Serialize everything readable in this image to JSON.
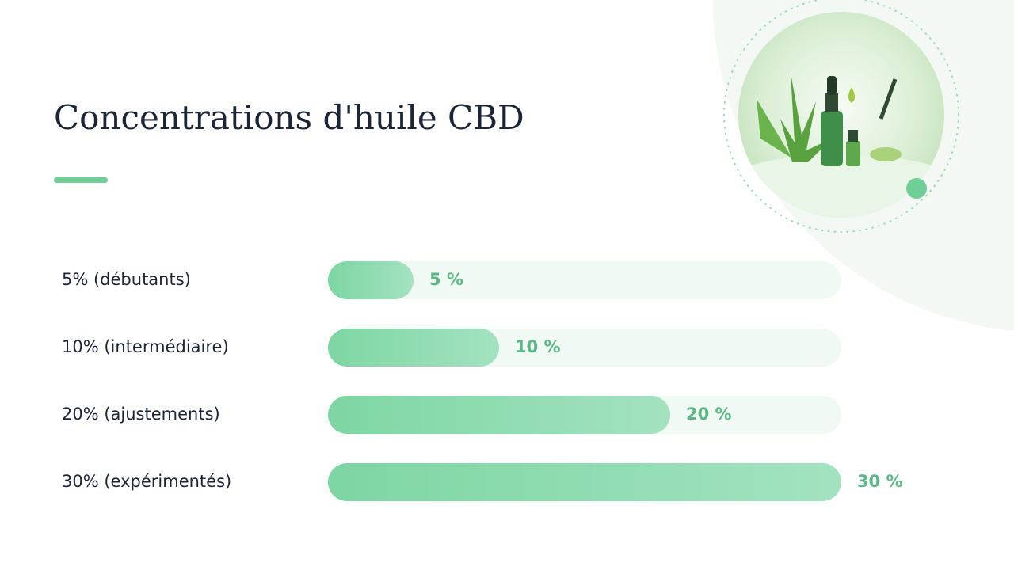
{
  "chart_data": {
    "type": "bar",
    "orientation": "horizontal",
    "title": "Concentrations d'huile CBD",
    "categories": [
      "5% (débutants)",
      "10% (intermédiaire)",
      "20% (ajustements)",
      "30% (expérimentés)"
    ],
    "values": [
      5,
      10,
      20,
      30
    ],
    "value_labels": [
      "5 %",
      "10 %",
      "20 %",
      "30 %"
    ],
    "xlim": [
      0,
      30
    ],
    "color": "#7dd6a3",
    "track_color": "#f1f9f4",
    "value_label_color": "#5cb884"
  }
}
